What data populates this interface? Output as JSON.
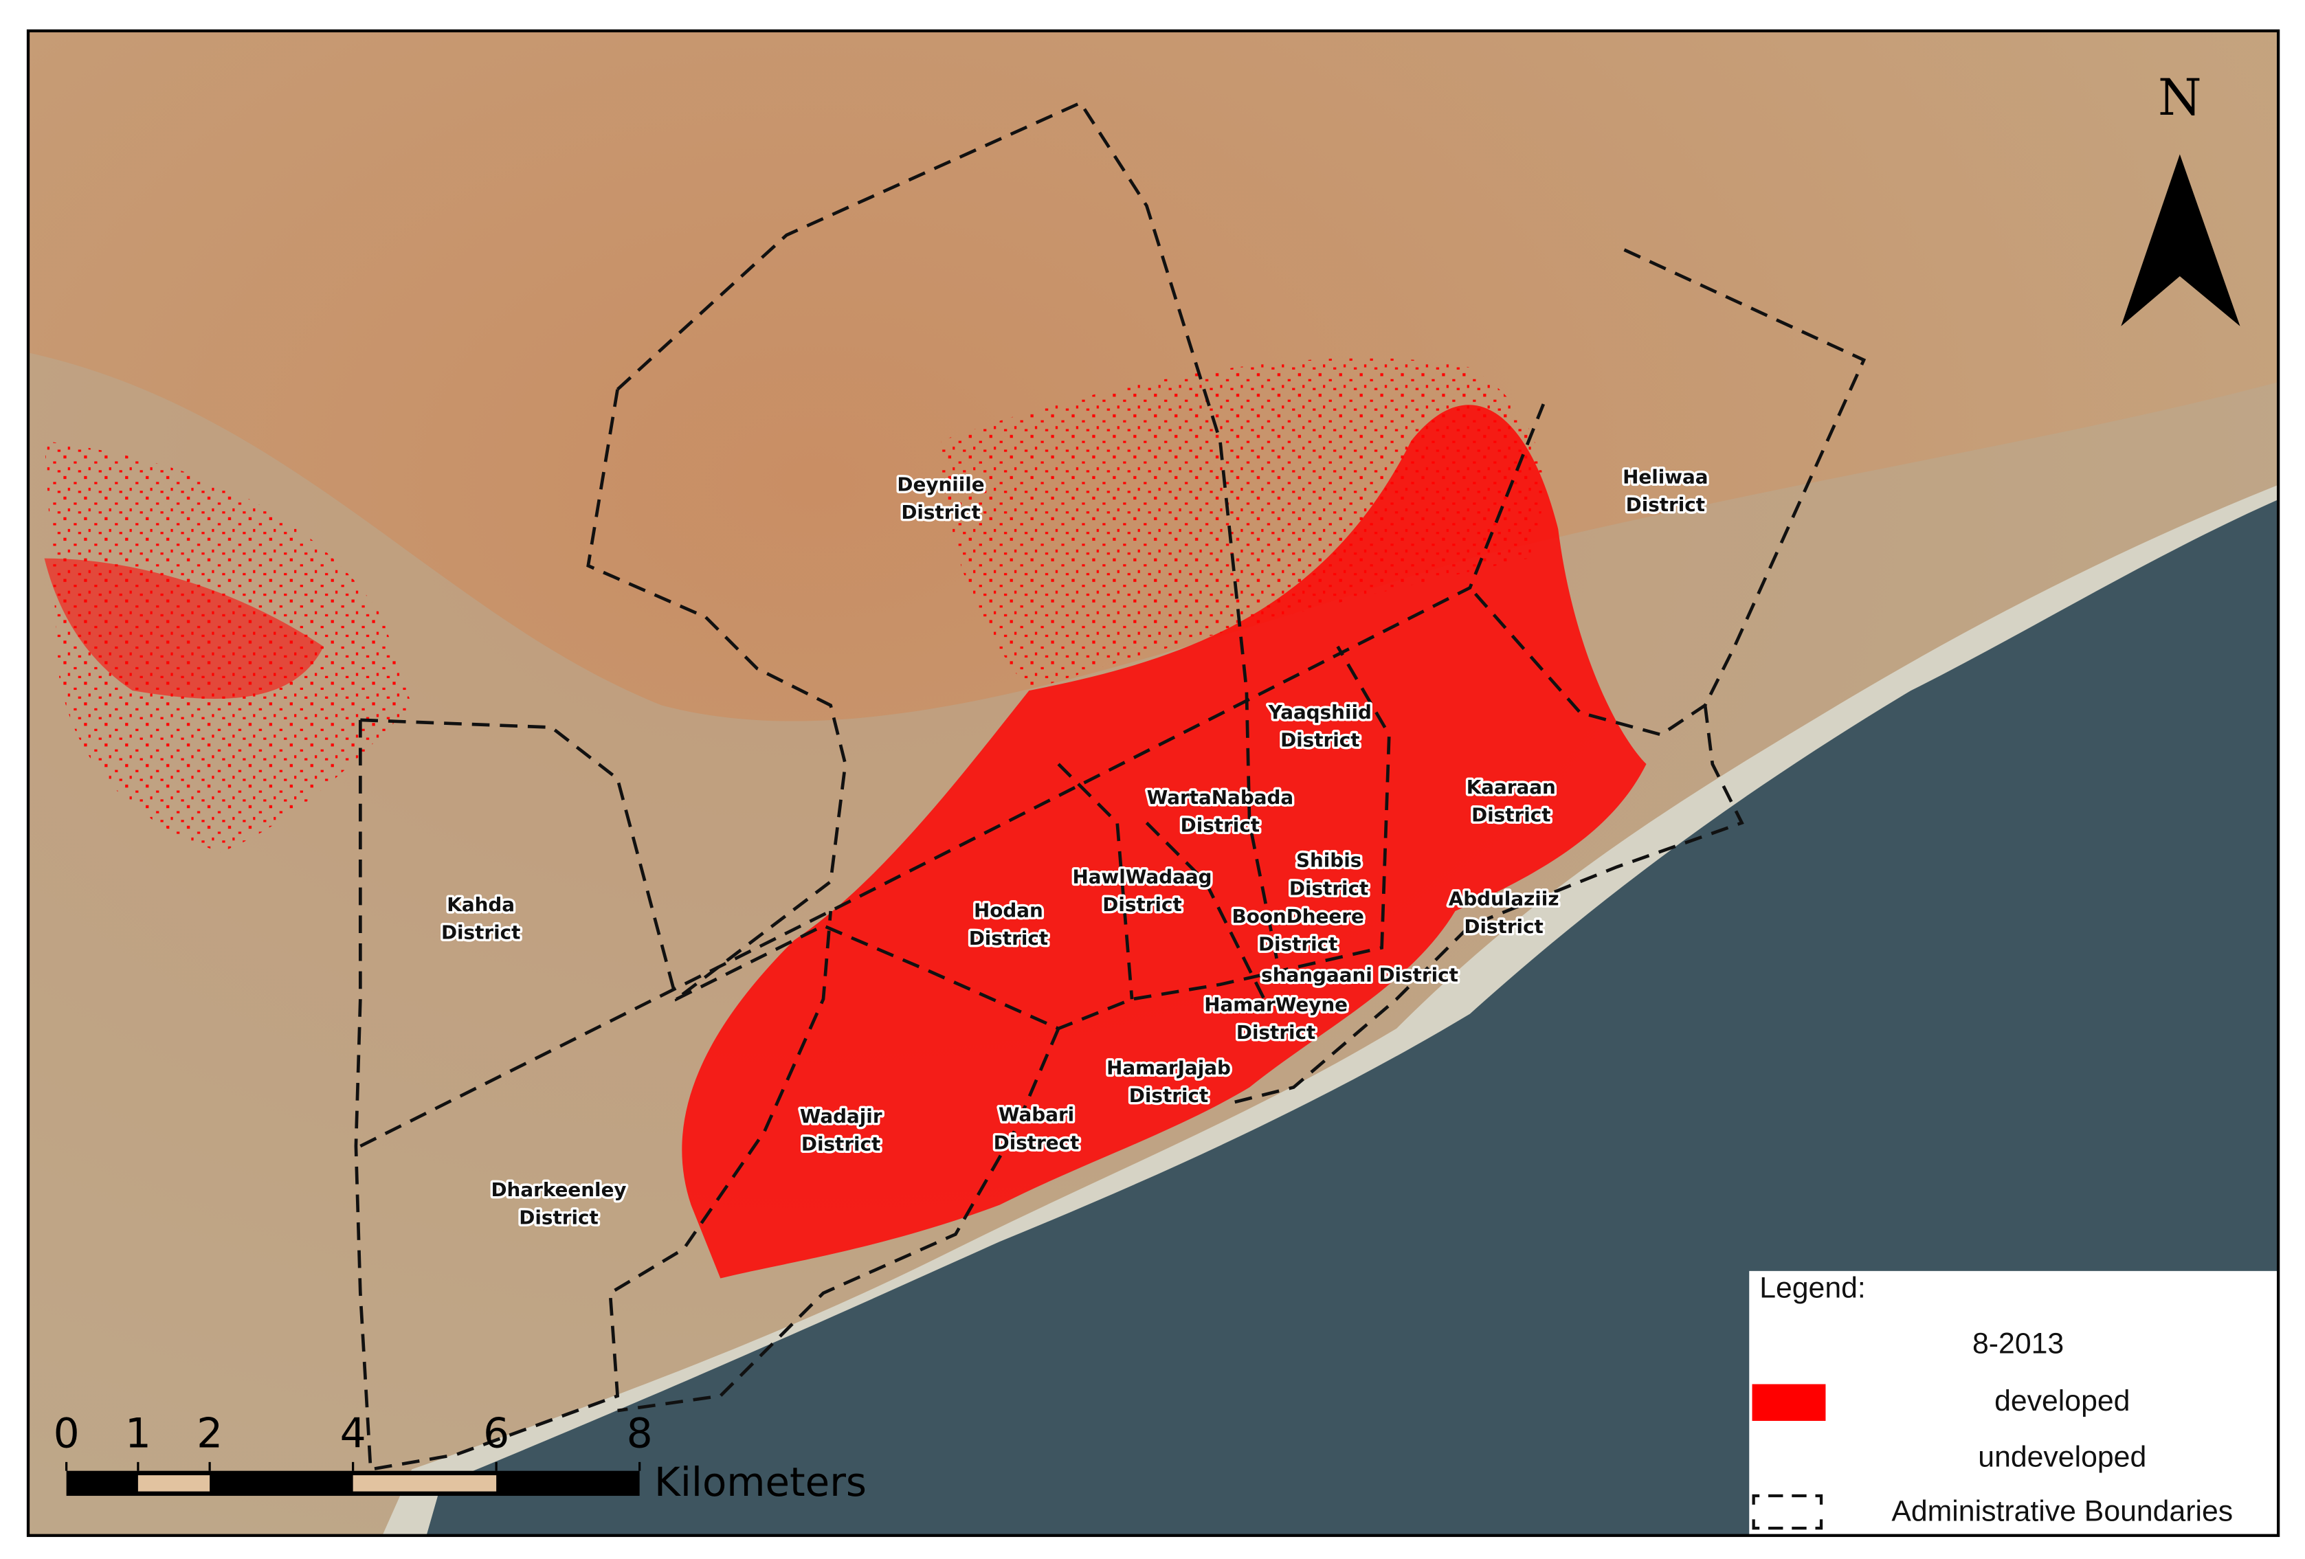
{
  "north": "N",
  "scale_bar": {
    "ticks": [
      0,
      1,
      2,
      4,
      6,
      8
    ],
    "unit": "Kilometers"
  },
  "districts": [
    {
      "lines": [
        "Deyniile",
        "District"
      ]
    },
    {
      "lines": [
        "Heliwaa",
        "District"
      ]
    },
    {
      "lines": [
        "Yaaqshiid",
        "District"
      ]
    },
    {
      "lines": [
        "Kaaraan",
        "District"
      ]
    },
    {
      "lines": [
        "WartaNabada",
        "District"
      ]
    },
    {
      "lines": [
        "Shibis",
        "District"
      ]
    },
    {
      "lines": [
        "HawlWadaag",
        "District"
      ]
    },
    {
      "lines": [
        "Hodan",
        "District"
      ]
    },
    {
      "lines": [
        "Abdulaziiz",
        "District"
      ]
    },
    {
      "lines": [
        "BoonDheere",
        "District"
      ]
    },
    {
      "lines": [
        "shangaani District"
      ]
    },
    {
      "lines": [
        "HamarWeyne",
        "District"
      ]
    },
    {
      "lines": [
        "HamarJajab",
        "District"
      ]
    },
    {
      "lines": [
        "Kahda",
        "District"
      ]
    },
    {
      "lines": [
        "Wadajir",
        "District"
      ]
    },
    {
      "lines": [
        "Wabari",
        "Distrect"
      ]
    },
    {
      "lines": [
        "Dharkeenley",
        "District"
      ]
    }
  ],
  "legend": {
    "title": "Legend:",
    "date": "8-2013",
    "items": [
      "developed",
      "undeveloped",
      "Administrative Boundaries"
    ]
  }
}
